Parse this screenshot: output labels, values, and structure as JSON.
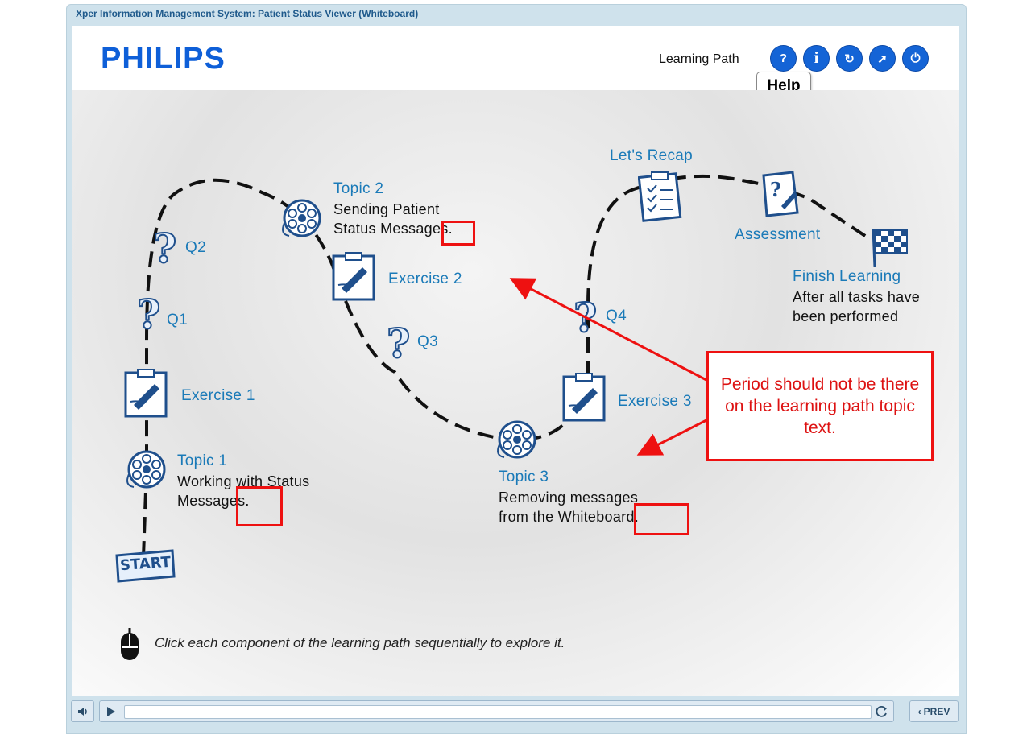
{
  "window": {
    "title": "Xper Information Management System: Patient Status Viewer (Whiteboard)"
  },
  "header": {
    "logo": "PHILIPS",
    "section_label": "Learning Path",
    "buttons": [
      {
        "name": "help",
        "glyph": "?"
      },
      {
        "name": "info",
        "glyph": "i"
      },
      {
        "name": "replay",
        "glyph": "↻"
      },
      {
        "name": "compass",
        "glyph": "➚"
      },
      {
        "name": "power",
        "glyph": "⏻"
      }
    ],
    "tooltip": "Help"
  },
  "path": {
    "start": "START",
    "topic1": {
      "title": "Topic 1",
      "line1": "Working with Status",
      "line2": "Messages."
    },
    "exercise1": "Exercise 1",
    "q1": "Q1",
    "q2": "Q2",
    "topic2": {
      "title": "Topic 2",
      "line1": "Sending Patient",
      "line2": "Status Messages."
    },
    "exercise2": "Exercise 2",
    "q3": "Q3",
    "topic3": {
      "title": "Topic 3",
      "line1": "Removing messages",
      "line2": "from the Whiteboard."
    },
    "exercise3": "Exercise 3",
    "q4": "Q4",
    "recap": "Let's Recap",
    "assessment": "Assessment",
    "finish": {
      "title": "Finish Learning",
      "line1": "After all tasks have",
      "line2": "been performed"
    }
  },
  "annotation": {
    "text": "Period should not be there on the learning path topic text.",
    "color": "#e11111"
  },
  "instruction": "Click each component of the learning path sequentially to explore it.",
  "player": {
    "prev_label": "PREV",
    "progress": 0
  },
  "colors": {
    "brand": "#0e5fd8",
    "label_blue": "#1a7ab8",
    "frame": "#cfe2ec"
  }
}
